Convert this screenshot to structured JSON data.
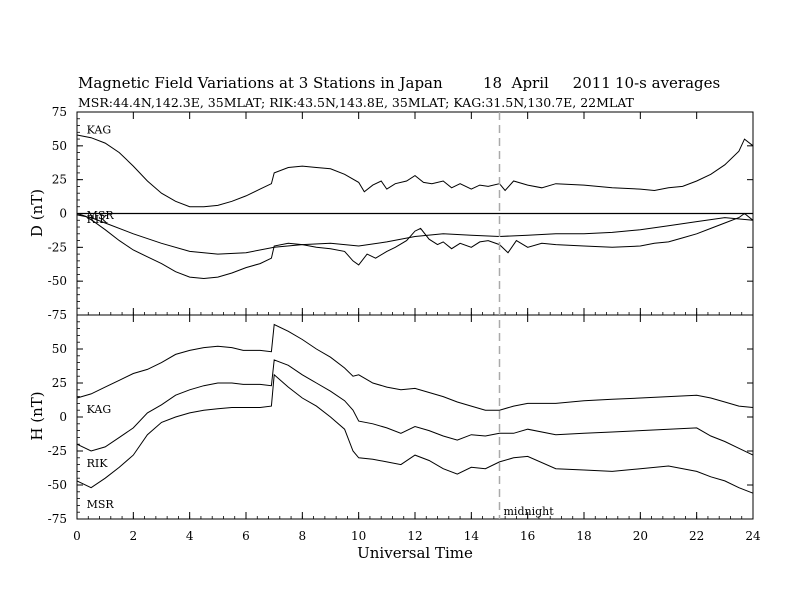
{
  "chart_data": {
    "type": "line",
    "title": "Magnetic Field Variations at 3 Stations in Japan",
    "title_date": "18  April     2011",
    "title_note": "10-s averages",
    "subtitle": "MSR:44.4N,142.3E, 35MLAT;  RIK:43.5N,143.8E, 35MLAT;  KAG:31.5N,130.7E, 22MLAT",
    "xlabel": "Universal Time",
    "xlim": [
      0,
      24
    ],
    "xticks": [
      "0",
      "2",
      "4",
      "6",
      "8",
      "10",
      "12",
      "14",
      "16",
      "18",
      "20",
      "22",
      "24"
    ],
    "annotation": {
      "x": 15,
      "text": "midnight",
      "style": "dashed",
      "color": "#aaaaaa"
    },
    "panels": [
      {
        "ylabel": "D (nT)",
        "ylim": [
          -75,
          75
        ],
        "yticks": [
          "75",
          "50",
          "25",
          "0",
          "-25",
          "-50",
          "-75"
        ],
        "zero_line": true,
        "labels": [
          {
            "text": "KAG",
            "x": 0.2,
            "y": 62
          },
          {
            "text": "MSR",
            "x": 0.2,
            "y": -1
          },
          {
            "text": "RIK",
            "x": 0.2,
            "y": -4
          }
        ],
        "series": [
          {
            "name": "KAG",
            "x": [
              0,
              0.5,
              1,
              1.5,
              2,
              2.5,
              3,
              3.5,
              4,
              4.5,
              5,
              5.5,
              6,
              6.5,
              6.9,
              7,
              7.5,
              8,
              8.5,
              9,
              9.5,
              10,
              10.2,
              10.5,
              10.8,
              11,
              11.3,
              11.7,
              12,
              12.3,
              12.6,
              13,
              13.3,
              13.6,
              14,
              14.3,
              14.6,
              15,
              15.2,
              15.5,
              16,
              16.5,
              17,
              18,
              19,
              20,
              20.5,
              21,
              21.5,
              22,
              22.5,
              23,
              23.5,
              23.7,
              24
            ],
            "values": [
              58,
              56,
              52,
              45,
              35,
              24,
              15,
              9,
              5,
              5,
              6,
              9,
              13,
              18,
              22,
              30,
              34,
              35,
              34,
              33,
              29,
              23,
              16,
              21,
              24,
              18,
              22,
              24,
              28,
              23,
              22,
              24,
              19,
              22,
              18,
              21,
              20,
              22,
              17,
              24,
              21,
              19,
              22,
              21,
              19,
              18,
              17,
              19,
              20,
              24,
              29,
              36,
              46,
              55,
              50
            ]
          },
          {
            "name": "MSR",
            "x": [
              0,
              0.3,
              0.6,
              1,
              1.5,
              2,
              2.5,
              3,
              3.5,
              4,
              4.5,
              5,
              5.5,
              6,
              6.5,
              6.9,
              7,
              7.5,
              8,
              8.5,
              9,
              9.5,
              9.8,
              10,
              10.3,
              10.6,
              11,
              11.3,
              11.7,
              12,
              12.2,
              12.5,
              12.8,
              13,
              13.3,
              13.6,
              14,
              14.3,
              14.6,
              15,
              15.3,
              15.6,
              16,
              16.5,
              17,
              18,
              19,
              20,
              20.5,
              21,
              21.5,
              22,
              22.5,
              23,
              23.5,
              23.7,
              24
            ],
            "values": [
              0,
              -2,
              -6,
              -12,
              -20,
              -27,
              -32,
              -37,
              -43,
              -47,
              -48,
              -47,
              -44,
              -40,
              -37,
              -33,
              -24,
              -22,
              -23,
              -25,
              -26,
              -28,
              -35,
              -38,
              -30,
              -33,
              -28,
              -25,
              -20,
              -13,
              -11,
              -19,
              -23,
              -21,
              -26,
              -22,
              -25,
              -21,
              -20,
              -23,
              -29,
              -20,
              -25,
              -22,
              -23,
              -24,
              -25,
              -24,
              -22,
              -21,
              -18,
              -15,
              -11,
              -7,
              -3,
              0,
              -5
            ]
          },
          {
            "name": "RIK",
            "x": [
              0,
              0.5,
              1,
              2,
              3,
              4,
              5,
              6,
              7,
              8,
              9,
              10,
              11,
              12,
              13,
              14,
              15,
              16,
              17,
              18,
              19,
              20,
              21,
              22,
              23,
              24
            ],
            "values": [
              -1,
              -3,
              -7,
              -15,
              -22,
              -28,
              -30,
              -29,
              -25,
              -23,
              -22,
              -24,
              -21,
              -17,
              -15,
              -16,
              -17,
              -16,
              -15,
              -15,
              -14,
              -12,
              -9,
              -6,
              -3,
              -5
            ]
          }
        ]
      },
      {
        "ylabel": "H (nT)",
        "ylim": [
          -75,
          75
        ],
        "yticks": [
          "75",
          "50",
          "25",
          "0",
          "-25",
          "-50",
          "-75"
        ],
        "zero_line": false,
        "labels": [
          {
            "text": "KAG",
            "x": 0.2,
            "y": 6
          },
          {
            "text": "RIK",
            "x": 0.2,
            "y": -34
          },
          {
            "text": "MSR",
            "x": 0.2,
            "y": -64
          }
        ],
        "series": [
          {
            "name": "KAG",
            "x": [
              0,
              0.5,
              1,
              1.5,
              2,
              2.5,
              3,
              3.5,
              4,
              4.5,
              5,
              5.5,
              5.9,
              6.5,
              6.9,
              7,
              7.5,
              8,
              8.5,
              9,
              9.5,
              9.8,
              10,
              10.5,
              11,
              11.5,
              12,
              12.5,
              13,
              13.5,
              14,
              14.5,
              15,
              15.5,
              16,
              17,
              18,
              19,
              20,
              21,
              22,
              22.5,
              23,
              23.5,
              24
            ],
            "values": [
              14,
              17,
              22,
              27,
              32,
              35,
              40,
              46,
              49,
              51,
              52,
              51,
              49,
              49,
              48,
              68,
              63,
              57,
              50,
              44,
              36,
              30,
              31,
              25,
              22,
              20,
              21,
              18,
              15,
              11,
              8,
              5,
              5,
              8,
              10,
              10,
              12,
              13,
              14,
              15,
              16,
              14,
              11,
              8,
              7
            ]
          },
          {
            "name": "RIK",
            "x": [
              0,
              0.5,
              1,
              1.5,
              2,
              2.5,
              3,
              3.5,
              4,
              4.5,
              5,
              5.5,
              5.9,
              6.5,
              6.9,
              7,
              7.5,
              8,
              8.5,
              9,
              9.5,
              9.8,
              10,
              10.5,
              11,
              11.5,
              12,
              12.5,
              13,
              13.5,
              14,
              14.5,
              15,
              15.5,
              16,
              17,
              18,
              19,
              20,
              21,
              22,
              22.5,
              23,
              23.5,
              24
            ],
            "values": [
              -20,
              -25,
              -22,
              -15,
              -8,
              3,
              9,
              16,
              20,
              23,
              25,
              25,
              24,
              24,
              23,
              42,
              38,
              31,
              25,
              19,
              12,
              5,
              -3,
              -5,
              -8,
              -12,
              -7,
              -10,
              -14,
              -17,
              -13,
              -14,
              -12,
              -12,
              -9,
              -13,
              -12,
              -11,
              -10,
              -9,
              -8,
              -14,
              -18,
              -23,
              -28
            ]
          },
          {
            "name": "MSR",
            "x": [
              0,
              0.5,
              1,
              1.5,
              2,
              2.5,
              3,
              3.5,
              4,
              4.5,
              5,
              5.5,
              5.9,
              6.5,
              6.9,
              7,
              7.5,
              8,
              8.5,
              9,
              9.5,
              9.8,
              10,
              10.5,
              11,
              11.5,
              12,
              12.5,
              13,
              13.5,
              14,
              14.5,
              15,
              15.5,
              16,
              17,
              18,
              19,
              20,
              21,
              22,
              22.5,
              23,
              23.5,
              24
            ],
            "values": [
              -47,
              -52,
              -45,
              -37,
              -28,
              -13,
              -4,
              0,
              3,
              5,
              6,
              7,
              7,
              7,
              8,
              31,
              22,
              14,
              8,
              0,
              -9,
              -25,
              -30,
              -31,
              -33,
              -35,
              -28,
              -32,
              -38,
              -42,
              -37,
              -38,
              -33,
              -30,
              -29,
              -38,
              -39,
              -40,
              -38,
              -36,
              -40,
              -44,
              -47,
              -52,
              -56
            ]
          }
        ]
      }
    ]
  }
}
